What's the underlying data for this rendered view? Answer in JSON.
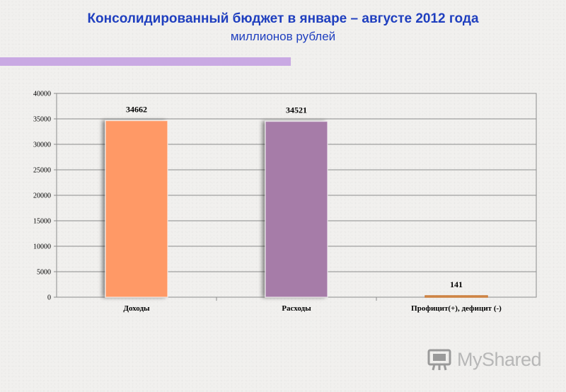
{
  "header": {
    "title": "Консолидированный бюджет в январе – августе 2012 года",
    "subtitle": "миллионов рублей"
  },
  "colors": {
    "title": "#1f3fbf",
    "accent_bar": "#c9a9e3",
    "bar_income": "#ff9966",
    "bar_expense": "#a67ba8",
    "bar_balance": "#e8a35a"
  },
  "chart_data": {
    "type": "bar",
    "categories": [
      "Доходы",
      "Расходы",
      "Профицит(+), дефицит (-)"
    ],
    "values": [
      34662,
      34521,
      141
    ],
    "data_labels": [
      "34662",
      "34521",
      "141"
    ],
    "bar_colors": [
      "#ff9966",
      "#a67ba8",
      "#e8a35a"
    ],
    "y_ticks": [
      "0",
      "5000",
      "10000",
      "15000",
      "20000",
      "25000",
      "30000",
      "35000",
      "40000"
    ],
    "ylim": [
      0,
      40000
    ],
    "grid": true,
    "legend": "none"
  },
  "logo": {
    "text": "MyShared",
    "icon": "presentation-board-icon"
  }
}
